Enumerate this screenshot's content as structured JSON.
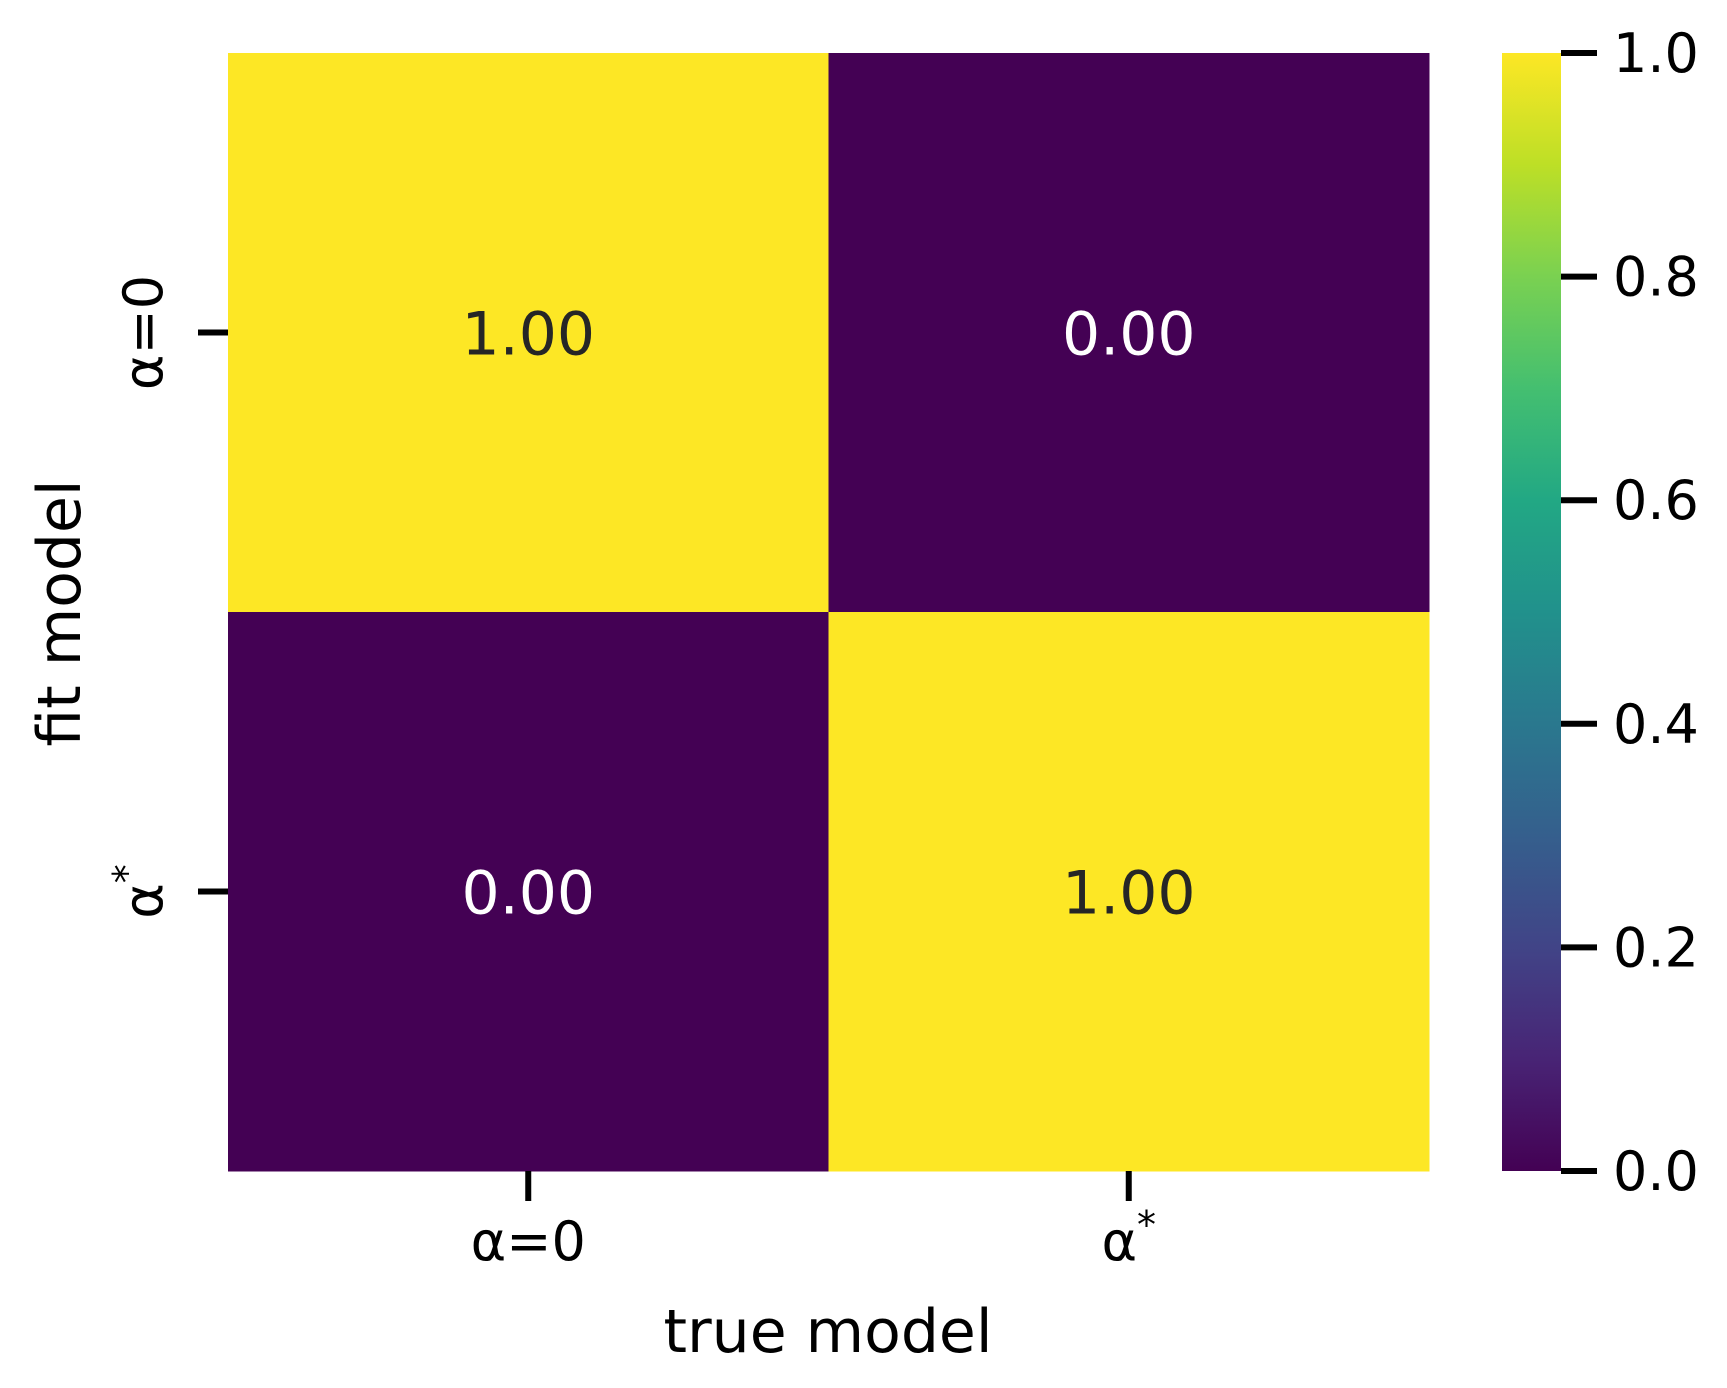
{
  "chart_data": {
    "type": "heatmap",
    "x_categories": [
      "α=0",
      "α*"
    ],
    "y_categories": [
      "α=0",
      "α*"
    ],
    "values": [
      [
        1.0,
        0.0
      ],
      [
        0.0,
        1.0
      ]
    ],
    "cell_labels": [
      [
        "1.00",
        "0.00"
      ],
      [
        "0.00",
        "1.00"
      ]
    ],
    "xlabel": "true model",
    "ylabel": "fit model",
    "colormap": "viridis",
    "colorbar": {
      "range": [
        0.0,
        1.0
      ],
      "ticks": [
        0.0,
        0.2,
        0.4,
        0.6,
        0.8,
        1.0
      ],
      "tick_labels": [
        "0.0",
        "0.2",
        "0.4",
        "0.6",
        "0.8",
        "1.0"
      ]
    },
    "colors": {
      "low": "#440154",
      "high": "#fde725",
      "label_on_low": "#ffffff",
      "label_on_high": "#262626"
    }
  }
}
